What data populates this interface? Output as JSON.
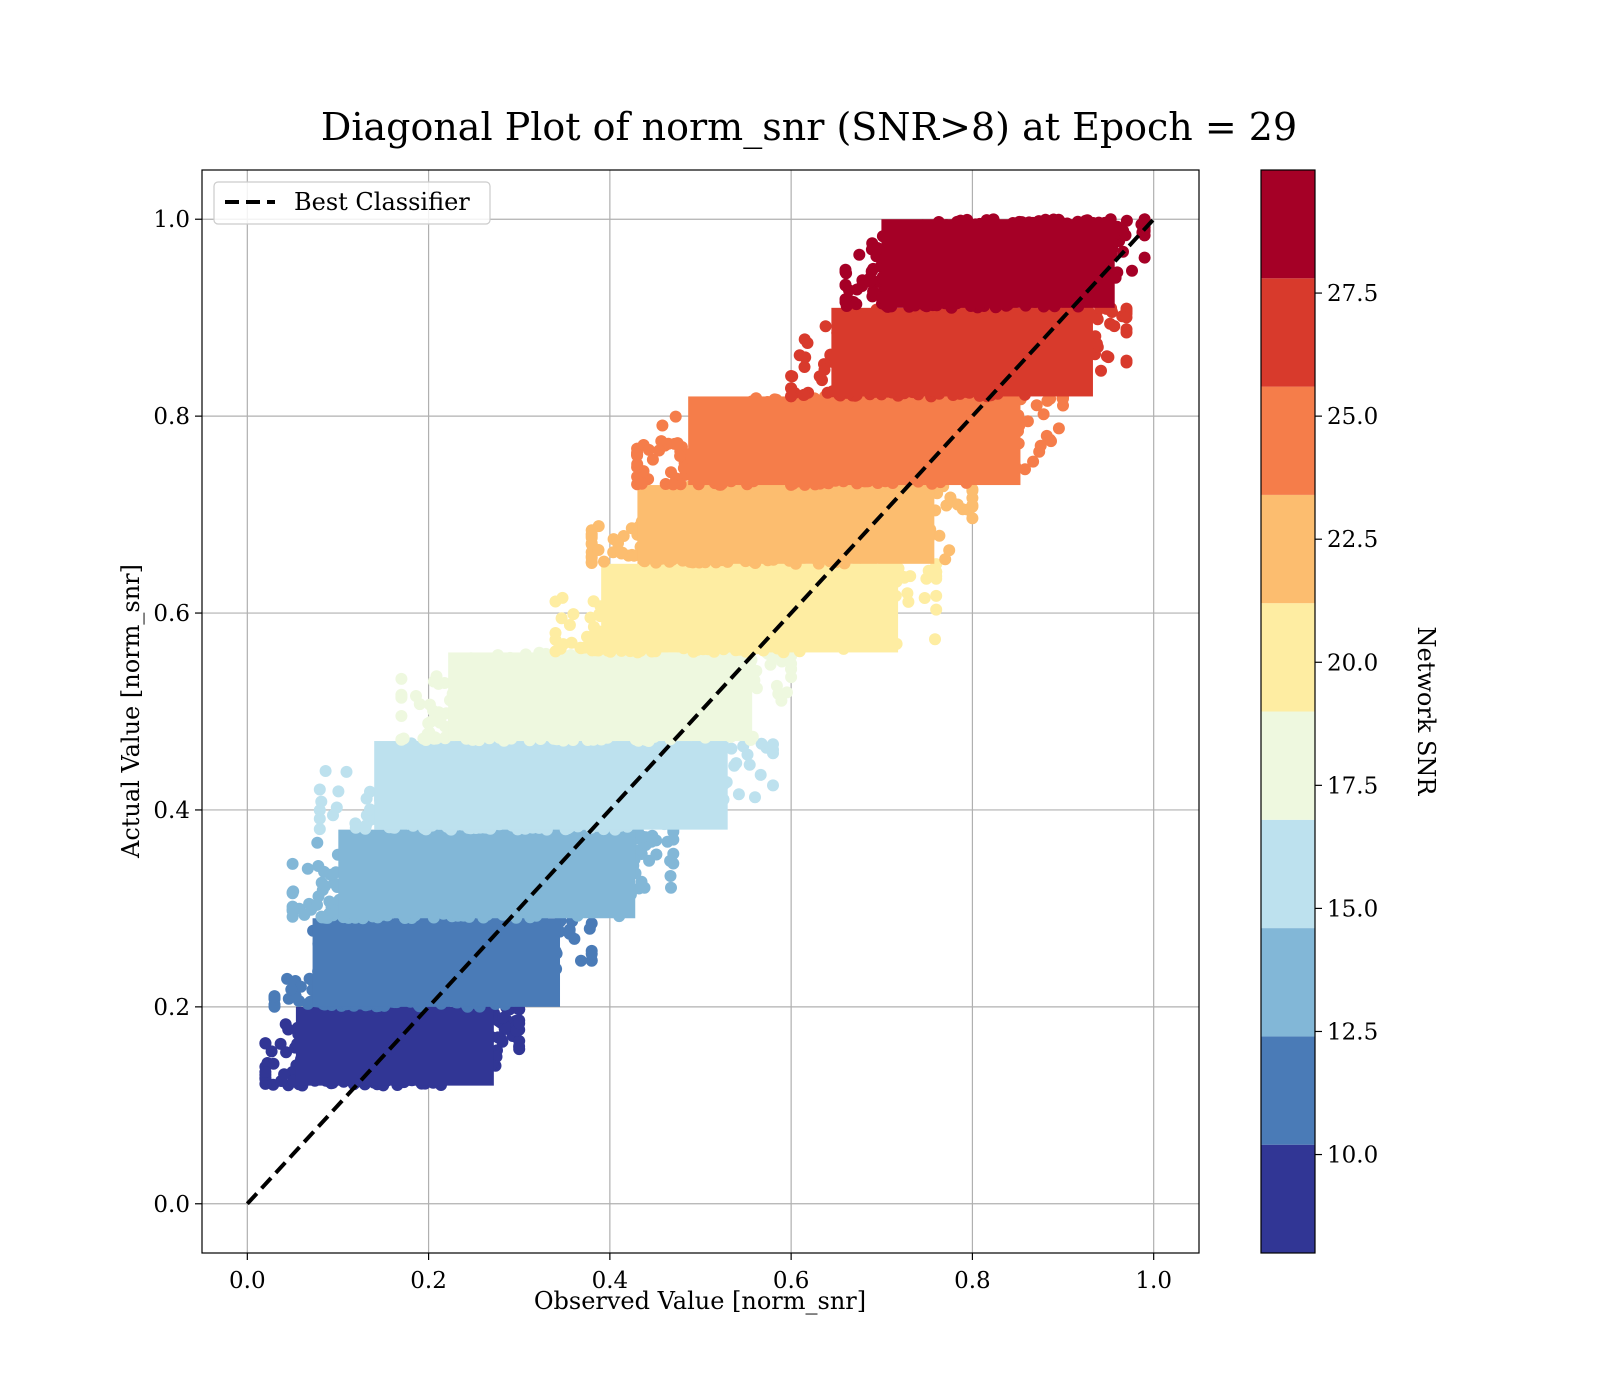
{
  "chart_data": {
    "type": "scatter",
    "title": "Diagonal Plot of norm_snr (SNR>8) at Epoch = 29",
    "xlabel": "Observed Value [norm_snr]",
    "ylabel": "Actual Value [norm_snr]",
    "xlim": [
      -0.05,
      1.05
    ],
    "ylim": [
      -0.05,
      1.05
    ],
    "xticks": [
      "0.0",
      "0.2",
      "0.4",
      "0.6",
      "0.8",
      "1.0"
    ],
    "yticks": [
      "0.0",
      "0.2",
      "0.4",
      "0.6",
      "0.8",
      "1.0"
    ],
    "grid": true,
    "legend": {
      "placement": "top-left",
      "entries": [
        "Best Classifier"
      ]
    },
    "reference_line": {
      "name": "Best Classifier",
      "style": "dashed",
      "color": "#000000",
      "x": [
        0,
        1
      ],
      "y": [
        0,
        1
      ]
    },
    "colorbar": {
      "label": "Network SNR",
      "range": [
        8,
        30
      ],
      "ticks": [
        "10.0",
        "12.5",
        "15.0",
        "17.5",
        "20.0",
        "22.5",
        "25.0",
        "27.5"
      ],
      "tick_values": [
        10,
        12.5,
        15,
        17.5,
        20,
        22.5,
        25,
        27.5
      ],
      "colors": [
        "#313695",
        "#4a7bb7",
        "#82b7d7",
        "#bde1ee",
        "#eef8df",
        "#feeda2",
        "#fcbd6f",
        "#f57d4a",
        "#d83a2c",
        "#a50026"
      ]
    },
    "bands": [
      {
        "snr_min": 8.0,
        "snr_max": 10.2,
        "color": "#313695",
        "actual_min": 0.12,
        "actual_max": 0.2,
        "observed_min": 0.02,
        "observed_max": 0.3
      },
      {
        "snr_min": 10.2,
        "snr_max": 12.4,
        "color": "#4a7bb7",
        "actual_min": 0.2,
        "actual_max": 0.29,
        "observed_min": 0.03,
        "observed_max": 0.38
      },
      {
        "snr_min": 12.4,
        "snr_max": 14.6,
        "color": "#82b7d7",
        "actual_min": 0.29,
        "actual_max": 0.38,
        "observed_min": 0.05,
        "observed_max": 0.47
      },
      {
        "snr_min": 14.6,
        "snr_max": 16.8,
        "color": "#bde1ee",
        "actual_min": 0.38,
        "actual_max": 0.47,
        "observed_min": 0.08,
        "observed_max": 0.58
      },
      {
        "snr_min": 16.8,
        "snr_max": 19.0,
        "color": "#eef8df",
        "actual_min": 0.47,
        "actual_max": 0.56,
        "observed_min": 0.17,
        "observed_max": 0.6
      },
      {
        "snr_min": 19.0,
        "snr_max": 21.2,
        "color": "#feeda2",
        "actual_min": 0.56,
        "actual_max": 0.65,
        "observed_min": 0.34,
        "observed_max": 0.76
      },
      {
        "snr_min": 21.2,
        "snr_max": 23.4,
        "color": "#fcbd6f",
        "actual_min": 0.65,
        "actual_max": 0.73,
        "observed_min": 0.38,
        "observed_max": 0.8
      },
      {
        "snr_min": 23.4,
        "snr_max": 25.6,
        "color": "#f57d4a",
        "actual_min": 0.73,
        "actual_max": 0.82,
        "observed_min": 0.43,
        "observed_max": 0.9
      },
      {
        "snr_min": 25.6,
        "snr_max": 27.8,
        "color": "#d83a2c",
        "actual_min": 0.82,
        "actual_max": 0.91,
        "observed_min": 0.6,
        "observed_max": 0.97
      },
      {
        "snr_min": 27.8,
        "snr_max": 30.0,
        "color": "#a50026",
        "actual_min": 0.91,
        "actual_max": 1.0,
        "observed_min": 0.66,
        "observed_max": 0.99
      }
    ]
  }
}
